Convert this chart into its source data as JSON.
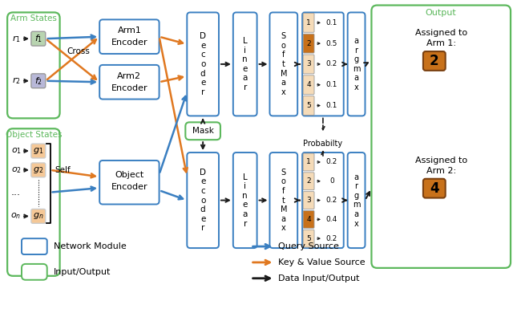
{
  "bg_color": "#ffffff",
  "blue_ec": "#3a7fc1",
  "green_ec": "#5cb85c",
  "orange_arrow": "#e07820",
  "blue_arrow": "#3a7fc1",
  "black_arrow": "#1a1a1a",
  "green_text": "#5cb85c",
  "arm_states_label": "Arm States",
  "obj_states_label": "Object States",
  "output_label": "Output",
  "cross_label": "Cross",
  "self_label": "Self",
  "prob_label": "Probabilty",
  "row_vals_1": [
    "1",
    "2",
    "3",
    "4",
    "5"
  ],
  "row_probs_1": [
    "0.1",
    "0.5",
    "0.2",
    "0.1",
    "0.1"
  ],
  "row_colors_1": [
    "#f5dbb8",
    "#c8711a",
    "#f5dbb8",
    "#f5dbb8",
    "#f5dbb8"
  ],
  "row_vals_2": [
    "1",
    "2",
    "3",
    "4",
    "5"
  ],
  "row_probs_2": [
    "0.2",
    "0",
    "0.2",
    "0.4",
    "0.2"
  ],
  "row_colors_2": [
    "#f5dbb8",
    "#f5dbb8",
    "#f5dbb8",
    "#c8711a",
    "#f5dbb8"
  ],
  "f1_color": "#b8d4b0",
  "f2_color": "#b8b8d8",
  "g_color": "#f5c897",
  "result_color": "#c8711a"
}
